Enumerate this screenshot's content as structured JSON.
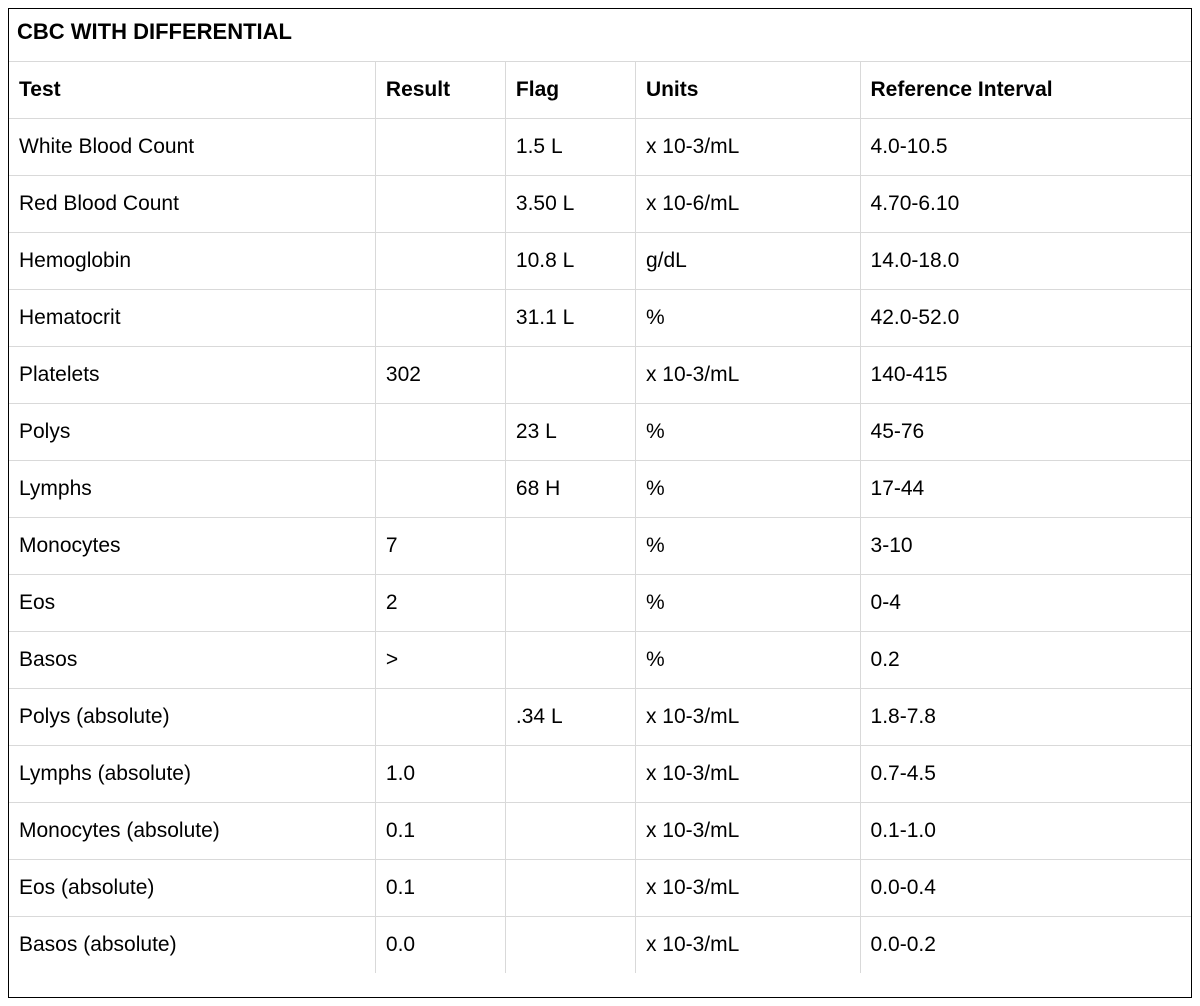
{
  "title": "CBC WITH DIFFERENTIAL",
  "columns": [
    "Test",
    "Result",
    "Flag",
    "Units",
    "Reference Interval"
  ],
  "rows": [
    {
      "test": "White Blood Count",
      "result": "",
      "flag": "1.5 L",
      "units": "x 10-3/mL",
      "ref": "4.0-10.5"
    },
    {
      "test": "Red Blood Count",
      "result": "",
      "flag": "3.50 L",
      "units": "x 10-6/mL",
      "ref": "4.70-6.10"
    },
    {
      "test": "Hemoglobin",
      "result": "",
      "flag": "10.8 L",
      "units": "g/dL",
      "ref": "14.0-18.0"
    },
    {
      "test": "Hematocrit",
      "result": "",
      "flag": "31.1 L",
      "units": "%",
      "ref": "42.0-52.0"
    },
    {
      "test": "Platelets",
      "result": "302",
      "flag": "",
      "units": "x 10-3/mL",
      "ref": "140-415"
    },
    {
      "test": "Polys",
      "result": "",
      "flag": "23 L",
      "units": "%",
      "ref": "45-76"
    },
    {
      "test": "Lymphs",
      "result": "",
      "flag": "68 H",
      "units": "%",
      "ref": "17-44"
    },
    {
      "test": "Monocytes",
      "result": "7",
      "flag": "",
      "units": "%",
      "ref": "3-10"
    },
    {
      "test": "Eos",
      "result": "2",
      "flag": "",
      "units": "%",
      "ref": "0-4"
    },
    {
      "test": "Basos",
      "result": ">",
      "flag": "",
      "units": "%",
      "ref": "0.2"
    },
    {
      "test": "Polys (absolute)",
      "result": "",
      "flag": ".34 L",
      "units": "x 10-3/mL",
      "ref": "1.8-7.8"
    },
    {
      "test": "Lymphs (absolute)",
      "result": "1.0",
      "flag": "",
      "units": "x 10-3/mL",
      "ref": "0.7-4.5"
    },
    {
      "test": "Monocytes (absolute)",
      "result": "0.1",
      "flag": "",
      "units": "x 10-3/mL",
      "ref": "0.1-1.0"
    },
    {
      "test": "Eos (absolute)",
      "result": "0.1",
      "flag": "",
      "units": "x 10-3/mL",
      "ref": "0.0-0.4"
    },
    {
      "test": "Basos (absolute)",
      "result": "0.0",
      "flag": "",
      "units": "x 10-3/mL",
      "ref": "0.0-0.2"
    }
  ],
  "style": {
    "background_color": "#ffffff",
    "border_color": "#000000",
    "grid_color": "#d9d9d9",
    "text_color": "#000000",
    "title_fontsize": 22,
    "header_fontsize": 21,
    "cell_fontsize": 21,
    "font_family": "Arial, Helvetica, sans-serif",
    "col_widths_pct": {
      "test": 31,
      "result": 11,
      "flag": 11,
      "units": 19,
      "ref": 28
    }
  }
}
